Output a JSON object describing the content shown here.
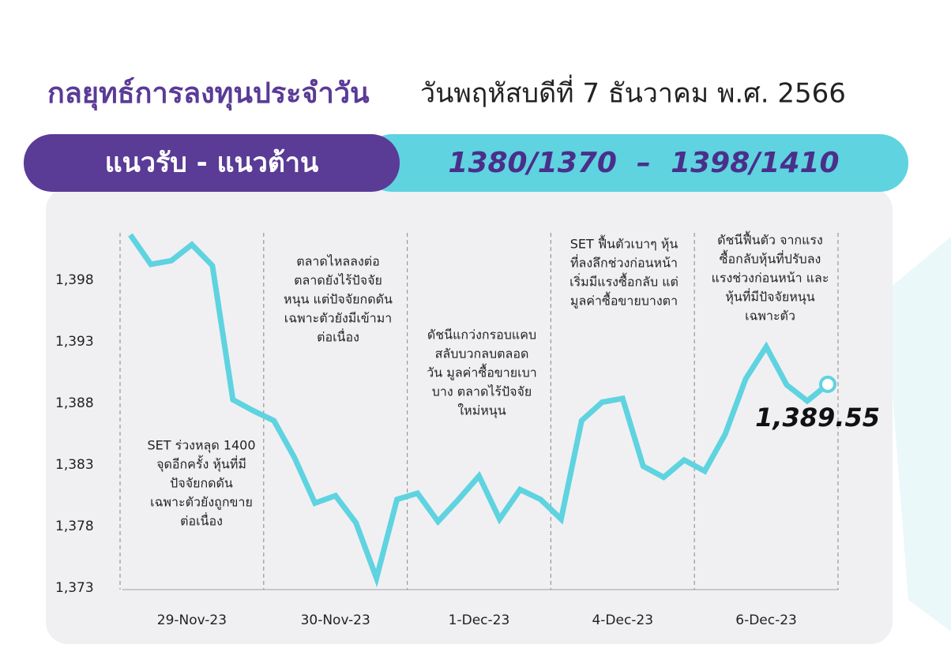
{
  "header": {
    "title": "กลยุทธ์การลงทุนประจำวัน",
    "date": "วันพฤหัสบดีที่ 7 ธันวาคม พ.ศ. 2566"
  },
  "banner": {
    "label": "แนวรับ - แนวต้าน",
    "levels": "1380/1370  –  1398/1410"
  },
  "chart_data": {
    "type": "line",
    "categories": [
      null,
      null,
      null,
      "29-Nov-23",
      null,
      null,
      null,
      null,
      null,
      null,
      "30-Nov-23",
      null,
      null,
      null,
      null,
      null,
      null,
      "1-Dec-23",
      null,
      null,
      null,
      null,
      null,
      null,
      "4-Dec-23",
      null,
      null,
      null,
      null,
      null,
      null,
      "6-Dec-23",
      null,
      null,
      null
    ],
    "series": [
      {
        "name": "SET",
        "color": "#5fd3e0",
        "values": [
          1401.7,
          1399.3,
          1399.6,
          1400.9,
          1399.2,
          1388.3,
          1387.4,
          1386.6,
          1383.6,
          1379.9,
          1380.5,
          1378.3,
          1373.8,
          1380.2,
          1380.7,
          1378.4,
          1380.2,
          1382.1,
          1378.6,
          1381.0,
          1380.2,
          1378.6,
          1386.6,
          1388.1,
          1388.4,
          1382.9,
          1382.0,
          1383.4,
          1382.5,
          1385.5,
          1390.0,
          1392.6,
          1389.5,
          1388.2,
          1389.55
        ],
        "value_labels": [
          null,
          null,
          null,
          null,
          null,
          null,
          null,
          null,
          null,
          null,
          null,
          null,
          null,
          null,
          null,
          null,
          null,
          null,
          null,
          null,
          null,
          null,
          null,
          null,
          null,
          null,
          null,
          null,
          null,
          null,
          null,
          null,
          null,
          null,
          "1,389.55"
        ]
      }
    ],
    "ylim": [
      1373,
      1402.5
    ],
    "yticks": [
      {
        "value": 1373,
        "label": "1,373"
      },
      {
        "value": 1378,
        "label": "1,378"
      },
      {
        "value": 1383,
        "label": "1,383"
      },
      {
        "value": 1388,
        "label": "1,388"
      },
      {
        "value": 1393,
        "label": "1,393"
      },
      {
        "value": 1398,
        "label": "1,398"
      }
    ],
    "grid": false,
    "annotations": [
      [
        "SET ร่วงหลุด 1400",
        "จุดอีกครั้ง หุ้นที่มี",
        "ปัจจัยกดดัน",
        "เฉพาะตัวยังถูกขาย",
        "ต่อเนื่อง"
      ],
      [
        "ตลาดไหลลงต่อ",
        "ตลาดยังไร้ปัจจัย",
        "หนุน แต่ปัจจัยกดดัน",
        "เฉพาะตัวยังมีเข้ามา",
        "ต่อเนื่อง"
      ],
      [
        "ดัชนีแกว่งกรอบแคบ",
        "สลับบวกลบตลอด",
        "วัน มูลค่าซื้อขายเบา",
        "บาง ตลาดไร้ปัจจัย",
        "ใหม่หนุน"
      ],
      [
        "SET ฟื้นตัวเบาๆ หุ้น",
        "ที่ลงลึกช่วงก่อนหน้า",
        "เริ่มมีแรงซื้อกลับ แต่",
        "มูลค่าซื้อขายบางตา"
      ],
      [
        "ดัชนีฟื้นตัว จากแรง",
        "ซื้อกลับหุ้นที่ปรับลง",
        "แรงช่วงก่อนหน้า และ",
        "หุ้นที่มีปัจจัยหนุน",
        "เฉพาะตัว"
      ]
    ]
  }
}
